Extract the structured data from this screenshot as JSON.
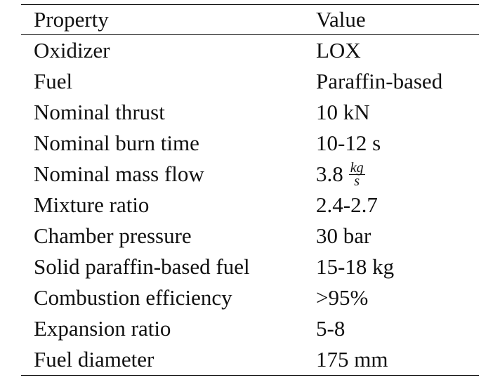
{
  "table": {
    "headers": {
      "property": "Property",
      "value": "Value"
    },
    "rows": [
      {
        "property": "Oxidizer",
        "value": "LOX"
      },
      {
        "property": "Fuel",
        "value": "Paraffin-based"
      },
      {
        "property": "Nominal thrust",
        "value": "10 kN"
      },
      {
        "property": "Nominal burn time",
        "value": "10-12 s"
      },
      {
        "property": "Nominal mass flow",
        "value": "3.8",
        "unit_numerator": "kg",
        "unit_denominator": "s"
      },
      {
        "property": "Mixture ratio",
        "value": "2.4-2.7"
      },
      {
        "property": "Chamber pressure",
        "value": "30 bar"
      },
      {
        "property": "Solid paraffin-based fuel",
        "value": "15-18 kg"
      },
      {
        "property": "Combustion efficiency",
        "value": ">95%"
      },
      {
        "property": "Expansion ratio",
        "value": "5-8"
      },
      {
        "property": "Fuel diameter",
        "value": "175 mm"
      }
    ]
  }
}
